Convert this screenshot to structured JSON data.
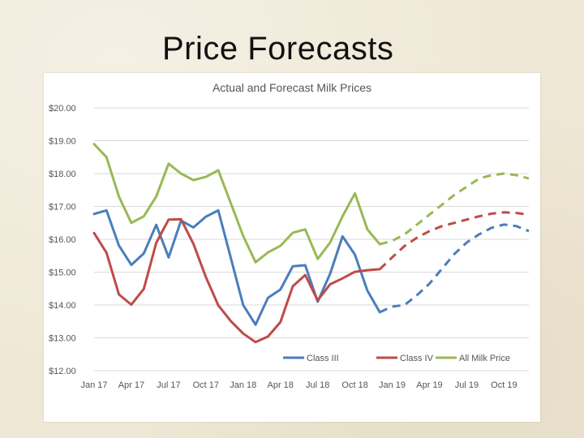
{
  "slide": {
    "title": "Price Forecasts"
  },
  "colors": {
    "class_iii": "#4a7ebb",
    "class_iv": "#be4b48",
    "all_milk": "#98b954",
    "grid": "#d9d9d9"
  },
  "chart_data": {
    "type": "line",
    "title": "Actual and Forecast Milk Prices",
    "xlabel": "",
    "ylabel": "",
    "ylim": [
      12,
      20
    ],
    "y_ticks": [
      12,
      13,
      14,
      15,
      16,
      17,
      18,
      19,
      20
    ],
    "y_tick_labels": [
      "$12.00",
      "$13.00",
      "$14.00",
      "$15.00",
      "$16.00",
      "$17.00",
      "$18.00",
      "$19.00",
      "$20.00"
    ],
    "x_tick_labels": [
      "Jan 17",
      "Apr 17",
      "Jul 17",
      "Oct 17",
      "Jan 18",
      "Apr 18",
      "Jul 18",
      "Oct 18",
      "Jan 19",
      "Apr 19",
      "Jul 19",
      "Oct 19"
    ],
    "x_tick_index": [
      0,
      3,
      6,
      9,
      12,
      15,
      18,
      21,
      24,
      27,
      30,
      33
    ],
    "legend_position": "bottom-right",
    "series": [
      {
        "name": "Class III",
        "color_key": "class_iii",
        "actual": [
          16.77,
          16.88,
          15.81,
          15.22,
          15.57,
          16.44,
          15.45,
          16.57,
          16.36,
          16.69,
          16.88,
          15.44,
          14.0,
          13.4,
          14.22,
          14.47,
          15.18,
          15.21,
          14.1,
          14.95,
          16.09,
          15.53,
          14.44,
          13.78
        ],
        "forecast_start": 23,
        "forecast": [
          13.78,
          13.95,
          14.0,
          14.3,
          14.65,
          15.1,
          15.55,
          15.9,
          16.15,
          16.35,
          16.45,
          16.4,
          16.25
        ]
      },
      {
        "name": "Class IV",
        "color_key": "class_iv",
        "actual": [
          16.19,
          15.59,
          14.32,
          14.01,
          14.49,
          15.89,
          16.6,
          16.61,
          15.86,
          14.85,
          13.99,
          13.51,
          13.13,
          12.87,
          13.04,
          13.48,
          14.57,
          14.91,
          14.14,
          14.63,
          14.81,
          15.01,
          15.06,
          15.09
        ],
        "forecast_start": 23,
        "forecast": [
          15.09,
          15.45,
          15.8,
          16.05,
          16.25,
          16.4,
          16.5,
          16.6,
          16.7,
          16.78,
          16.82,
          16.8,
          16.75
        ]
      },
      {
        "name": "All Milk Price",
        "color_key": "all_milk",
        "actual": [
          18.9,
          18.5,
          17.3,
          16.5,
          16.7,
          17.3,
          18.3,
          18.0,
          17.8,
          17.9,
          18.1,
          17.1,
          16.1,
          15.3,
          15.6,
          15.8,
          16.2,
          16.3,
          15.4,
          15.9,
          16.7,
          17.4,
          16.3,
          15.85
        ],
        "forecast_start": 23,
        "forecast": [
          15.85,
          15.95,
          16.15,
          16.45,
          16.75,
          17.05,
          17.35,
          17.6,
          17.85,
          17.95,
          18.0,
          17.95,
          17.85
        ]
      }
    ]
  }
}
